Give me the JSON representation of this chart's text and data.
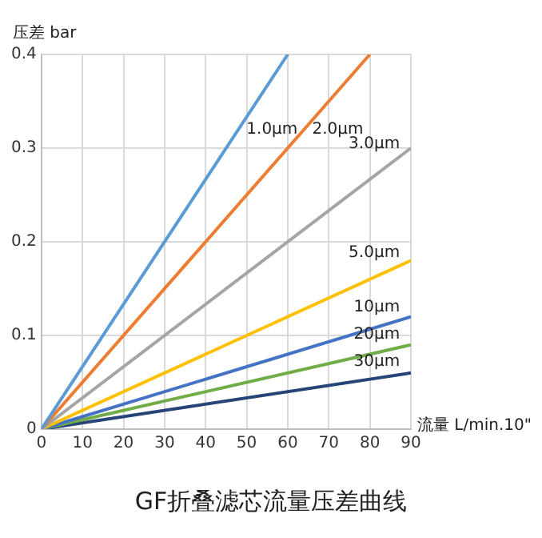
{
  "chart_data": {
    "type": "line",
    "title": "GF折叠滤芯流量压差曲线",
    "xlabel": "流量 L/min.10\"",
    "ylabel": "压差 bar",
    "series": [
      {
        "name": "1.0μm",
        "color": "#5b9bd5",
        "x": [
          0,
          60
        ],
        "values": [
          0,
          0.4
        ]
      },
      {
        "name": "2.0μm",
        "color": "#ed7d31",
        "x": [
          0,
          80
        ],
        "values": [
          0,
          0.4
        ]
      },
      {
        "name": "3.0μm",
        "color": "#a5a5a5",
        "x": [
          0,
          90
        ],
        "values": [
          0,
          0.3
        ]
      },
      {
        "name": "5.0μm",
        "color": "#ffc000",
        "x": [
          0,
          90
        ],
        "values": [
          0,
          0.18
        ]
      },
      {
        "name": "10μm",
        "color": "#4472c4",
        "x": [
          0,
          90
        ],
        "values": [
          0,
          0.12
        ]
      },
      {
        "name": "20μm",
        "color": "#70ad47",
        "x": [
          0,
          90
        ],
        "values": [
          0,
          0.09
        ]
      },
      {
        "name": "30μm",
        "color": "#264478",
        "x": [
          0,
          90
        ],
        "values": [
          0,
          0.06
        ]
      }
    ],
    "xlim": [
      0,
      90
    ],
    "xticks": [
      0,
      10,
      20,
      30,
      40,
      50,
      60,
      70,
      80,
      90
    ],
    "ylim": [
      0,
      0.4
    ],
    "yticks": [
      0,
      0.1,
      0.2,
      0.3,
      0.4
    ],
    "grid": true,
    "legend": false,
    "marker": "none",
    "line_style": "solid"
  }
}
